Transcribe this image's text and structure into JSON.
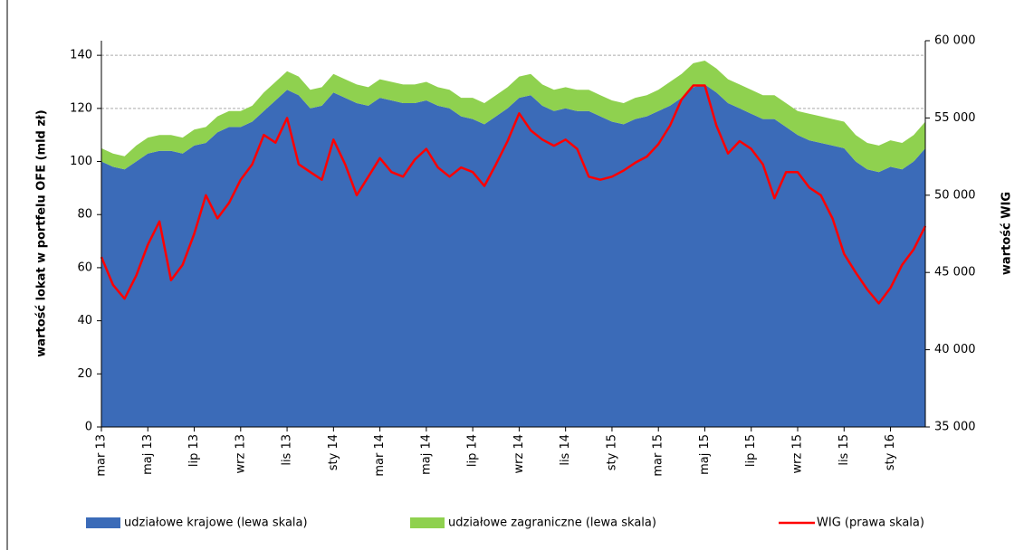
{
  "chart_data": {
    "type": "area",
    "y_label": "wartość lokat w portfelu OFE (mld zł)",
    "y2_label": "wartość WIG",
    "categories": [
      "mar 13",
      null,
      null,
      null,
      "maj 13",
      null,
      null,
      null,
      "lip 13",
      null,
      null,
      null,
      "wrz 13",
      null,
      null,
      null,
      "lis 13",
      null,
      null,
      null,
      "sty 14",
      null,
      null,
      null,
      "mar 14",
      null,
      null,
      null,
      "maj 14",
      null,
      null,
      null,
      "lip 14",
      null,
      null,
      null,
      "wrz 14",
      null,
      null,
      null,
      "lis 14",
      null,
      null,
      null,
      "sty 15",
      null,
      null,
      null,
      "mar 15",
      null,
      null,
      null,
      "maj 15",
      null,
      null,
      null,
      "lip 15",
      null,
      null,
      null,
      "wrz 15",
      null,
      null,
      null,
      "lis 15",
      null,
      null,
      null,
      "sty 16",
      null,
      null,
      null
    ],
    "series": [
      {
        "name": "udziałowe krajowe (lewa skala)",
        "type": "area",
        "color": "#3b6bb8",
        "values": [
          100,
          98,
          97,
          100,
          103,
          104,
          104,
          103,
          106,
          107,
          111,
          113,
          113,
          115,
          119,
          123,
          127,
          125,
          120,
          121,
          126,
          124,
          122,
          121,
          124,
          123,
          122,
          122,
          123,
          121,
          120,
          117,
          116,
          114,
          117,
          120,
          124,
          125,
          121,
          119,
          120,
          119,
          119,
          117,
          115,
          114,
          116,
          117,
          119,
          121,
          124,
          128,
          129,
          126,
          122,
          120,
          118,
          116,
          116,
          113,
          110,
          108,
          107,
          106,
          105,
          100,
          97,
          96,
          98,
          97,
          100,
          105
        ]
      },
      {
        "name": "udziałowe zagraniczne (lewa skala)",
        "type": "area",
        "color": "#8fd14f",
        "values": [
          5,
          5,
          5,
          6,
          6,
          6,
          6,
          6,
          6,
          6,
          6,
          6,
          6,
          6,
          7,
          7,
          7,
          7,
          7,
          7,
          7,
          7,
          7,
          7,
          7,
          7,
          7,
          7,
          7,
          7,
          7,
          7,
          8,
          8,
          8,
          8,
          8,
          8,
          8,
          8,
          8,
          8,
          8,
          8,
          8,
          8,
          8,
          8,
          8,
          9,
          9,
          9,
          9,
          9,
          9,
          9,
          9,
          9,
          9,
          9,
          9,
          10,
          10,
          10,
          10,
          10,
          10,
          10,
          10,
          10,
          10,
          10
        ]
      },
      {
        "name": "WIG (prawa skala)",
        "type": "line",
        "axis": "y2",
        "color": "#ff0000",
        "values": [
          46000,
          44200,
          43300,
          44800,
          46800,
          48300,
          44500,
          45500,
          47500,
          50000,
          48500,
          49500,
          51000,
          52000,
          53900,
          53400,
          55000,
          52000,
          51500,
          51000,
          53600,
          52000,
          50000,
          51200,
          52400,
          51500,
          51200,
          52300,
          53000,
          51800,
          51200,
          51800,
          51500,
          50600,
          52000,
          53500,
          55300,
          54200,
          53600,
          53200,
          53600,
          53000,
          51200,
          51000,
          51200,
          51600,
          52100,
          52500,
          53300,
          54500,
          56200,
          57100,
          57100,
          54500,
          52700,
          53500,
          53000,
          52000,
          49800,
          51500,
          51500,
          50500,
          50000,
          48500,
          46200,
          45000,
          43900,
          43000,
          44000,
          45500,
          46500,
          48000
        ]
      }
    ],
    "ylim": [
      0,
      145.5
    ],
    "yticks": [
      0,
      20,
      40,
      60,
      80,
      100,
      120,
      140
    ],
    "y2lim": [
      35000,
      60000
    ],
    "y2ticks": [
      {
        "value": 35000,
        "label": "35 000"
      },
      {
        "value": 40000,
        "label": "40 000"
      },
      {
        "value": 45000,
        "label": "45 000"
      },
      {
        "value": 50000,
        "label": "50 000"
      },
      {
        "value": 55000,
        "label": "55 000"
      },
      {
        "value": 60000,
        "label": "60 000"
      }
    ],
    "grid": true,
    "legend": "bottom"
  }
}
